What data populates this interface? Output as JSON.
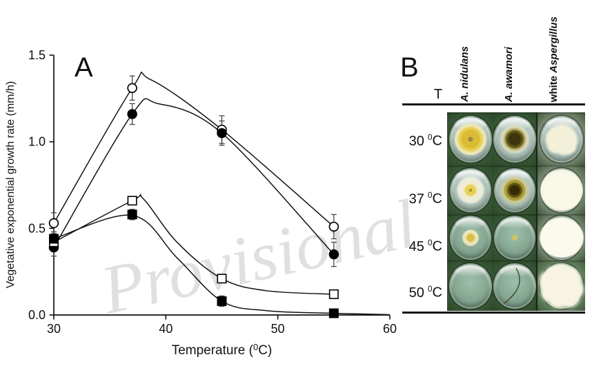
{
  "watermark": {
    "text": "Provisional",
    "color": "#e0e0e0"
  },
  "panel_a": {
    "label": "A"
  },
  "chart_data": {
    "type": "line",
    "title": "",
    "xlabel": {
      "pre": "Temperature (",
      "sup": "0",
      "post": "C)"
    },
    "ylabel": "Vegetative exponential growth rate (mm/h)",
    "xlim": [
      30,
      60
    ],
    "ylim": [
      0,
      1.5
    ],
    "xticks": [
      "30",
      "40",
      "50",
      "60"
    ],
    "yticks": [
      "0.0",
      "0.5",
      "1.0",
      "1.5"
    ],
    "grid": "off",
    "legend": "none",
    "line_color": "#111111",
    "error_bar_color": "#474747",
    "x": [
      30,
      37,
      45,
      55
    ],
    "series": [
      {
        "name": "open-circle",
        "marker": "circle",
        "fill": "open",
        "values": [
          0.53,
          1.31,
          1.07,
          0.51
        ],
        "err": [
          0.06,
          0.07,
          0.08,
          0.07
        ],
        "anchors": [
          [
            30,
            0.53
          ],
          [
            37,
            1.31
          ],
          [
            38.6,
            1.36
          ],
          [
            45,
            1.07
          ],
          [
            55,
            0.51
          ]
        ]
      },
      {
        "name": "filled-circle",
        "marker": "circle",
        "fill": "solid",
        "values": [
          0.39,
          1.16,
          1.05,
          0.35
        ],
        "err": [
          0.05,
          0.06,
          0.07,
          0.07
        ],
        "anchors": [
          [
            30,
            0.39
          ],
          [
            37,
            1.16
          ],
          [
            39.3,
            1.22
          ],
          [
            45,
            1.05
          ],
          [
            55,
            0.35
          ]
        ]
      },
      {
        "name": "open-square",
        "marker": "square",
        "fill": "open",
        "values": [
          0.42,
          0.66,
          0.21,
          0.12
        ],
        "err": [
          0.03,
          0,
          0,
          0
        ],
        "anchors": [
          [
            30,
            0.42
          ],
          [
            37,
            0.66
          ],
          [
            38,
            0.67
          ],
          [
            41,
            0.42
          ],
          [
            45,
            0.21
          ],
          [
            49,
            0.14
          ],
          [
            55,
            0.12
          ]
        ]
      },
      {
        "name": "filled-square",
        "marker": "square",
        "fill": "solid",
        "values": [
          0.44,
          0.58,
          0.08,
          0.01
        ],
        "err": [
          0.04,
          0.03,
          0.03,
          0.02
        ],
        "anchors": [
          [
            30,
            0.44
          ],
          [
            37,
            0.575
          ],
          [
            41,
            0.33
          ],
          [
            45,
            0.08
          ],
          [
            49,
            0.025
          ],
          [
            55,
            0.01
          ],
          [
            60,
            0.002
          ]
        ]
      }
    ]
  },
  "panel_b": {
    "label": "B",
    "col_header_t": "T",
    "columns": [
      {
        "plain": "",
        "species": "A. nidulans"
      },
      {
        "plain": "",
        "species": "A. awamori"
      },
      {
        "plain": "white ",
        "species": "Aspergillus"
      }
    ],
    "deg_sup": "0",
    "deg_unit": "C",
    "rows": [
      {
        "temp": "30",
        "cells": [
          "yellow-ring",
          "dark-center",
          "white-blob"
        ]
      },
      {
        "temp": "37",
        "cells": [
          "yellow-small",
          "dark-ring",
          "white-full"
        ]
      },
      {
        "temp": "45",
        "cells": [
          "yellow-dot",
          "tiny-dot",
          "white-full-bright"
        ]
      },
      {
        "temp": "50",
        "cells": [
          "none",
          "crack",
          "white-star"
        ]
      }
    ],
    "colors": {
      "plate_green": "#3a5a38",
      "well_gray": "#b7c8c1",
      "well_teal": "#7fa08c",
      "colony_yellow": "#e6c83c",
      "colony_dark": "#3c340e",
      "colony_white": "#f6f3e0",
      "seam": "#1c241c"
    }
  }
}
